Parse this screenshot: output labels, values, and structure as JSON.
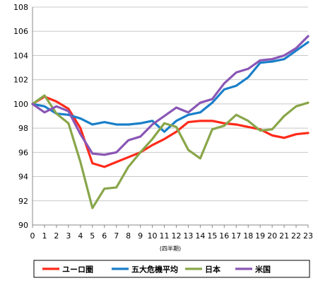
{
  "chart_data": {
    "type": "line",
    "title": "",
    "xlabel": "(四半期)",
    "ylabel": "",
    "x": [
      0,
      1,
      2,
      3,
      4,
      5,
      6,
      7,
      8,
      9,
      10,
      11,
      12,
      13,
      14,
      15,
      16,
      17,
      18,
      19,
      20,
      21,
      22,
      23
    ],
    "xlim": [
      0,
      23
    ],
    "ylim": [
      90,
      108
    ],
    "yticks": [
      90,
      92,
      94,
      96,
      98,
      100,
      102,
      104,
      106,
      108
    ],
    "grid": "horizontal",
    "legend_position": "bottom",
    "series": [
      {
        "name": "ユーロ圏",
        "color": "#ff2a1a",
        "values": [
          100.0,
          100.6,
          100.2,
          99.6,
          98.0,
          95.1,
          94.8,
          95.2,
          95.6,
          96.0,
          96.6,
          97.1,
          97.7,
          98.5,
          98.6,
          98.6,
          98.4,
          98.3,
          98.1,
          97.9,
          97.4,
          97.2,
          97.5,
          97.6
        ]
      },
      {
        "name": "五大危機平均",
        "color": "#1a7fc9",
        "values": [
          100.0,
          99.8,
          99.2,
          99.1,
          98.8,
          98.3,
          98.5,
          98.3,
          98.3,
          98.4,
          98.6,
          97.7,
          98.6,
          99.1,
          99.3,
          100.1,
          101.2,
          101.5,
          102.2,
          103.4,
          103.5,
          103.7,
          104.4,
          105.1
        ]
      },
      {
        "name": "日本",
        "color": "#89a64a",
        "values": [
          100.0,
          100.7,
          99.2,
          98.4,
          95.2,
          91.4,
          93.0,
          93.1,
          94.8,
          96.0,
          97.1,
          98.4,
          98.1,
          96.2,
          95.5,
          97.9,
          98.2,
          99.1,
          98.6,
          97.8,
          97.9,
          99.0,
          99.8,
          100.1
        ]
      },
      {
        "name": "米国",
        "color": "#8a56b5",
        "values": [
          100.0,
          99.3,
          99.8,
          99.4,
          97.5,
          95.9,
          95.8,
          96.0,
          97.0,
          97.3,
          98.3,
          99.0,
          99.7,
          99.3,
          100.1,
          100.4,
          101.7,
          102.6,
          102.9,
          103.6,
          103.7,
          104.0,
          104.6,
          105.6
        ]
      }
    ]
  }
}
